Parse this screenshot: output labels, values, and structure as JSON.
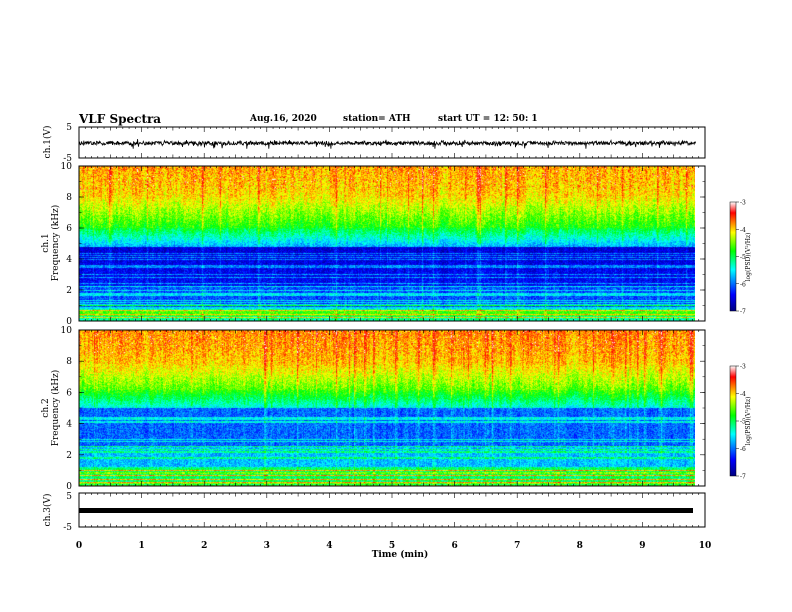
{
  "header": {
    "title": "VLF Spectra",
    "date": "Aug.16, 2020",
    "station": "station= ATH",
    "start": "start  UT =   12: 50: 1"
  },
  "colors": {
    "colormap": [
      "#000080",
      "#0000ff",
      "#00ffff",
      "#00ff00",
      "#ffff00",
      "#ff0000",
      "#ffffff"
    ],
    "trace": "#000000",
    "frame": "#000000"
  },
  "chart_data": [
    {
      "type": "line",
      "name": "ch1-waveform",
      "ylabel": "ch.1(V)",
      "ylim": [
        -5,
        5
      ],
      "yticks": [
        "5",
        "-5"
      ],
      "xlim": [
        0,
        10
      ],
      "approx_range": [
        -1.5,
        0.8
      ]
    },
    {
      "type": "heatmap",
      "name": "ch1-spectrogram",
      "ylabel": "ch.1\nFrequency (kHz)",
      "ylabel_lines": [
        "ch.1",
        "Frequency (kHz)"
      ],
      "ylim": [
        0,
        10
      ],
      "yticks": [
        "0",
        "2",
        "4",
        "6",
        "8",
        "10"
      ],
      "xlim": [
        0,
        10
      ],
      "data_xmax": 9.85,
      "colorbar": {
        "label": "log(PSD)(V²/Hz)",
        "range": [
          -7,
          -3
        ],
        "ticks": [
          "-3",
          "-4",
          "-5",
          "-6",
          "-7"
        ]
      }
    },
    {
      "type": "heatmap",
      "name": "ch2-spectrogram",
      "ylabel": "ch.2\nFrequency (kHz)",
      "ylabel_lines": [
        "ch.2",
        "Frequency (kHz)"
      ],
      "ylim": [
        0,
        10
      ],
      "yticks": [
        "0",
        "2",
        "4",
        "6",
        "8",
        "10"
      ],
      "xlim": [
        0,
        10
      ],
      "data_xmax": 9.85,
      "colorbar": {
        "label": "log(PSD)(V²/Hz)",
        "range": [
          -7,
          -3
        ],
        "ticks": [
          "-3",
          "-4",
          "-5",
          "-6",
          "-7"
        ]
      }
    },
    {
      "type": "line",
      "name": "ch3-waveform",
      "ylabel": "ch.3(V)",
      "ylim": [
        -5,
        5
      ],
      "yticks": [
        "5",
        "-5"
      ],
      "xlim": [
        0,
        10
      ],
      "approx_value": 0
    }
  ],
  "xaxis": {
    "label": "Time (min)",
    "ticks": [
      "0",
      "1",
      "2",
      "3",
      "4",
      "5",
      "6",
      "7",
      "8",
      "9",
      "10"
    ]
  }
}
